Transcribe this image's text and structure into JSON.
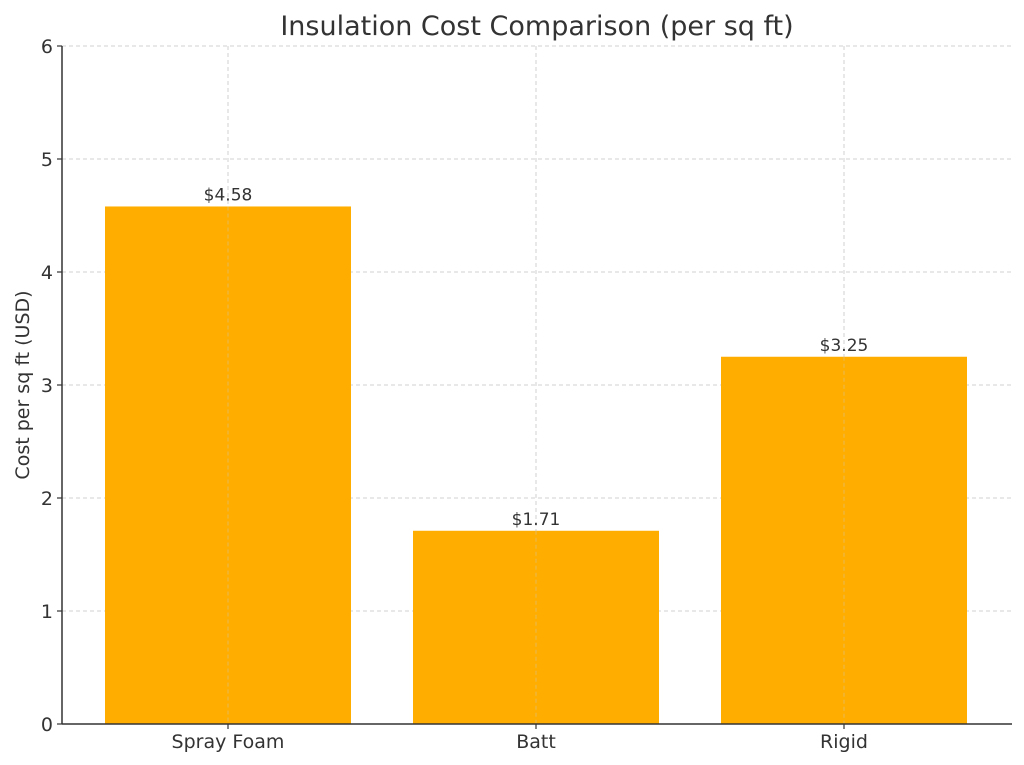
{
  "chart_data": {
    "type": "bar",
    "title": "Insulation Cost Comparison (per sq ft)",
    "xlabel": "",
    "ylabel": "Cost per sq ft (USD)",
    "categories": [
      "Spray Foam",
      "Batt",
      "Rigid"
    ],
    "values": [
      4.58,
      1.71,
      3.25
    ],
    "data_labels": [
      "$4.58",
      "$1.71",
      "$3.25"
    ],
    "ylim": [
      0,
      6
    ],
    "yticks": [
      0,
      1,
      2,
      3,
      4,
      5,
      6
    ],
    "grid": true,
    "legend": null,
    "bar_color": "#FFAE00"
  }
}
